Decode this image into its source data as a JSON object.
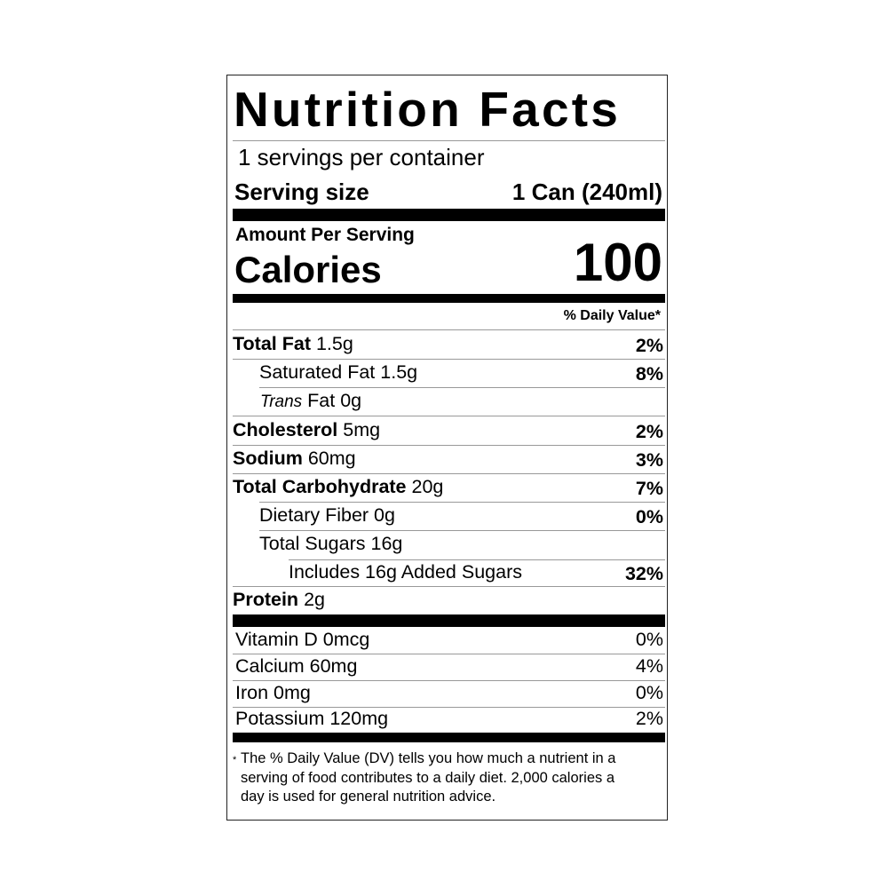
{
  "title": "Nutrition Facts",
  "servings_per_container": "1 servings per container",
  "serving_size": {
    "label": "Serving size",
    "value": "1 Can (240ml)"
  },
  "amount_per_serving": "Amount Per Serving",
  "calories": {
    "label": "Calories",
    "value": "100"
  },
  "daily_value_header": "% Daily Value*",
  "nutrients": [
    {
      "name": "Total Fat",
      "amount": "1.5g",
      "dv": "2%"
    },
    {
      "name": "Saturated Fat",
      "amount": "1.5g",
      "dv": "8%"
    },
    {
      "name": "Trans",
      "name_suffix": "Fat",
      "amount": "0g",
      "dv": ""
    },
    {
      "name": "Cholesterol",
      "amount": "5mg",
      "dv": "2%"
    },
    {
      "name": "Sodium",
      "amount": "60mg",
      "dv": "3%"
    },
    {
      "name": "Total Carbohydrate",
      "amount": "20g",
      "dv": "7%"
    },
    {
      "name": "Dietary Fiber",
      "amount": "0g",
      "dv": "0%"
    },
    {
      "name": "Total Sugars",
      "amount": "16g",
      "dv": ""
    },
    {
      "name": "Includes 16g Added Sugars",
      "amount": "",
      "dv": "32%"
    },
    {
      "name": "Protein",
      "amount": "2g",
      "dv": ""
    }
  ],
  "vitamins": [
    {
      "label": "Vitamin D 0mcg",
      "dv": "0%"
    },
    {
      "label": "Calcium 60mg",
      "dv": "4%"
    },
    {
      "label": "Iron 0mg",
      "dv": "0%"
    },
    {
      "label": "Potassium 120mg",
      "dv": "2%"
    }
  ],
  "footnote": {
    "marker": "*",
    "lines": [
      "The % Daily Value (DV) tells you how much a nutrient in a",
      "serving of food contributes to a daily diet. 2,000 calories a",
      "day is used for general nutrition advice."
    ]
  }
}
